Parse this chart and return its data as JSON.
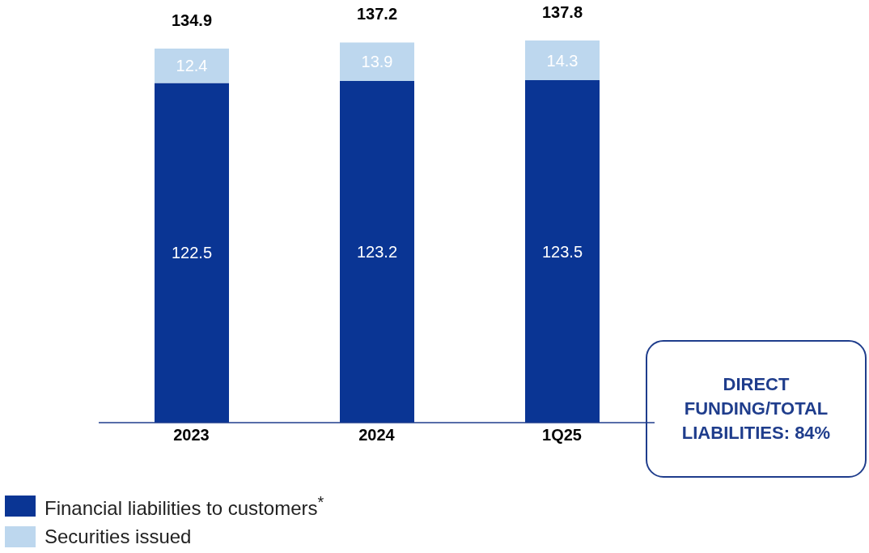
{
  "chart_data": {
    "type": "bar",
    "stacked": true,
    "categories": [
      "2023",
      "2024",
      "1Q25"
    ],
    "series": [
      {
        "name": "Financial liabilities to customers$^{*}$",
        "color": "#0a3594",
        "values": [
          122.5,
          123.2,
          123.5
        ]
      },
      {
        "name": "Securities issued",
        "color": "#bdd7ee",
        "values": [
          12.4,
          13.9,
          14.3
        ]
      }
    ],
    "data_labels": true,
    "totals": [
      "134.9",
      "137.2",
      "137.8"
    ],
    "legend": "bottom left",
    "annotations": [
      "DIRECT FUNDING/TOTAL LIABILITIES: 84%"
    ]
  }
}
